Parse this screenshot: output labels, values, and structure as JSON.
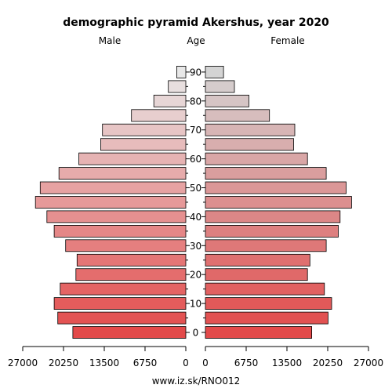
{
  "chart_data": {
    "type": "bar",
    "title": "demographic pyramid Akershus, year 2020",
    "male_label": "Male",
    "female_label": "Female",
    "age_label": "Age",
    "footer": "www.iz.sk/RNO012",
    "age_groups": [
      "0-4",
      "5-9",
      "10-14",
      "15-19",
      "20-24",
      "25-29",
      "30-34",
      "35-39",
      "40-44",
      "45-49",
      "50-54",
      "55-59",
      "60-64",
      "65-69",
      "70-74",
      "75-79",
      "80-84",
      "85-89",
      "90+"
    ],
    "age_tick_labels": [
      "0",
      "10",
      "20",
      "30",
      "40",
      "50",
      "60",
      "70",
      "80",
      "90"
    ],
    "x_tick_labels": [
      "27000",
      "20250",
      "13500",
      "6750",
      "0",
      "0",
      "6750",
      "13500",
      "20250",
      "27000"
    ],
    "xlim": [
      0,
      27000
    ],
    "series": [
      {
        "name": "Male",
        "values": [
          18700,
          21200,
          21800,
          20800,
          18200,
          18000,
          19900,
          21800,
          23000,
          24900,
          24100,
          21000,
          17700,
          14100,
          13800,
          9000,
          5300,
          2900,
          1500
        ]
      },
      {
        "name": "Female",
        "values": [
          17600,
          20300,
          20900,
          19700,
          16900,
          17300,
          20000,
          22000,
          22300,
          24200,
          23300,
          20000,
          16900,
          14600,
          14800,
          10600,
          7200,
          4800,
          3000
        ]
      }
    ],
    "colors": {
      "male_young": "#e34a4a",
      "male_old": "#e8e8e8",
      "female_young": "#e34a4a",
      "female_old": "#d4d4d4"
    }
  }
}
